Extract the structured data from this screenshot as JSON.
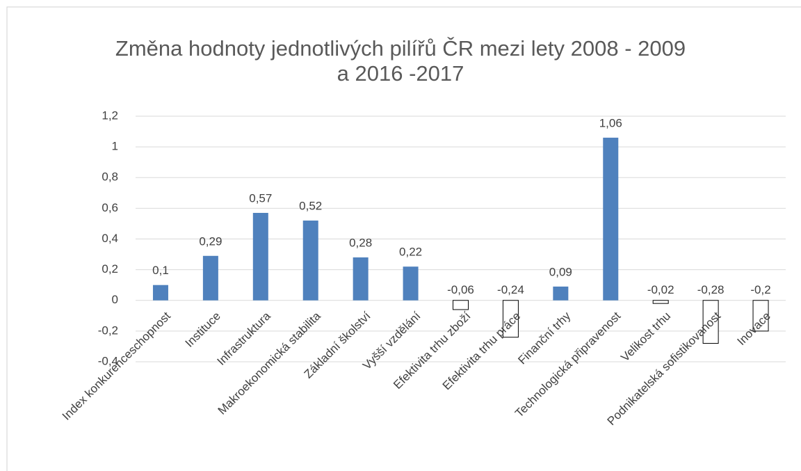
{
  "chart_data": {
    "type": "bar",
    "title_lines": [
      "Změna hodnoty jednotlivých pilířů ČR mezi lety 2008 - 2009",
      "a 2016 -2017"
    ],
    "categories": [
      "Index konkurenceschopnost",
      "Instituce",
      "Infrastruktura",
      "Makroekonomická stabilita",
      "Základní školství",
      "Vyšší vzdělání",
      "Efektivita trhu zboží",
      "Efektivita trhu práce",
      "Finanční trhy",
      "Technologická připravenost",
      "Velikost trhu",
      "Podnikatelská sofistikovanost",
      "Inovace"
    ],
    "values": [
      0.1,
      0.29,
      0.57,
      0.52,
      0.28,
      0.22,
      -0.06,
      -0.24,
      0.09,
      1.06,
      -0.02,
      -0.28,
      -0.2
    ],
    "value_labels": [
      "0,1",
      "0,29",
      "0,57",
      "0,52",
      "0,28",
      "0,22",
      "-0,06",
      "-0,24",
      "0,09",
      "1,06",
      "-0,02",
      "-0,28",
      "-0,2"
    ],
    "color": "#4f81bd",
    "negative_color": "#ffffff",
    "negative_stroke": "#000000",
    "ylim": [
      -0.4,
      1.2
    ],
    "yticks": [
      {
        "value": -0.4,
        "label": "-0,4"
      },
      {
        "value": -0.2,
        "label": "-0,2"
      },
      0,
      {
        "value": 0.2,
        "label": "0,2"
      },
      {
        "value": 0.4,
        "label": "0,4"
      },
      {
        "value": 0.6,
        "label": "0,6"
      },
      {
        "value": 0.8,
        "label": "0,8"
      },
      1,
      {
        "value": 1.2,
        "label": "1,2"
      }
    ],
    "grid": true
  }
}
